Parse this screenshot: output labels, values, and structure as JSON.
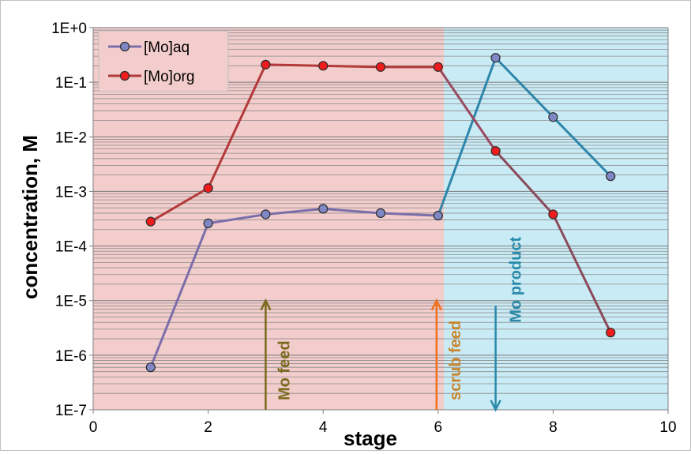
{
  "chart_data": {
    "type": "line",
    "title": "",
    "xlabel": "stage",
    "ylabel": "concentration, M",
    "xlim": [
      0,
      10
    ],
    "x_ticks": [
      0,
      2,
      4,
      6,
      8,
      10
    ],
    "x_tick_labels": [
      "0",
      "2",
      "4",
      "6",
      "8",
      "10"
    ],
    "ylim": [
      1e-07,
      1
    ],
    "y_scale": "log",
    "y_ticks": [
      1e-07,
      1e-06,
      1e-05,
      0.0001,
      0.001,
      0.01,
      0.1,
      1
    ],
    "y_tick_labels": [
      "1E-7",
      "1E-6",
      "1E-5",
      "1E-4",
      "1E-3",
      "1E-2",
      "1E-1",
      "1E+0"
    ],
    "grid": "horizontal major and minor",
    "legend_position": "top-left",
    "regions": [
      {
        "x_from": 0,
        "x_to": 6.1,
        "color": "#f3cccc"
      },
      {
        "x_from": 6.1,
        "x_to": 10,
        "color": "#c9ebf5"
      }
    ],
    "series": [
      {
        "name": "[Mo]aq",
        "line_color": "#7b6faa",
        "marker_color": "#7f87c4",
        "x": [
          1,
          2,
          3,
          4,
          5,
          6,
          7,
          8,
          9
        ],
        "y": [
          6e-07,
          0.00026,
          0.00038,
          0.00048,
          0.0004,
          0.00036,
          0.28,
          0.023,
          0.0019
        ],
        "segment_colors": [
          "#7b6faa",
          "#7b6faa",
          "#7b6faa",
          "#7b6faa",
          "#7b6faa",
          "#2e86ab",
          "#2e86ab",
          "#2e86ab"
        ]
      },
      {
        "name": "[Mo]org",
        "line_color": "#b33a3a",
        "marker_color": "#ee1c1c",
        "x": [
          1,
          2,
          3,
          4,
          5,
          6,
          7,
          8,
          9
        ],
        "y": [
          0.00028,
          0.00115,
          0.21,
          0.2,
          0.19,
          0.19,
          0.0055,
          0.00038,
          2.6e-06
        ],
        "segment_colors": [
          "#b33a3a",
          "#b33a3a",
          "#b33a3a",
          "#b33a3a",
          "#b33a3a",
          "#9a4a60",
          "#8a4a5a",
          "#8a4a5a"
        ]
      }
    ],
    "annotations": [
      {
        "text": "Mo feed",
        "color": "#7a6a1e",
        "arrow_x": 3,
        "arrow_from": 1e-07,
        "arrow_to": 1e-05,
        "direction": "up"
      },
      {
        "text": "scrub feed",
        "color": "#f0701e",
        "text_color": "#c8862e",
        "arrow_x": 6,
        "arrow_from": 1e-07,
        "arrow_to": 1e-05,
        "direction": "up"
      },
      {
        "text": "Mo product",
        "color": "#2a8aaa",
        "arrow_x": 7,
        "arrow_from": 8e-06,
        "arrow_to": 1e-07,
        "direction": "down"
      }
    ]
  }
}
